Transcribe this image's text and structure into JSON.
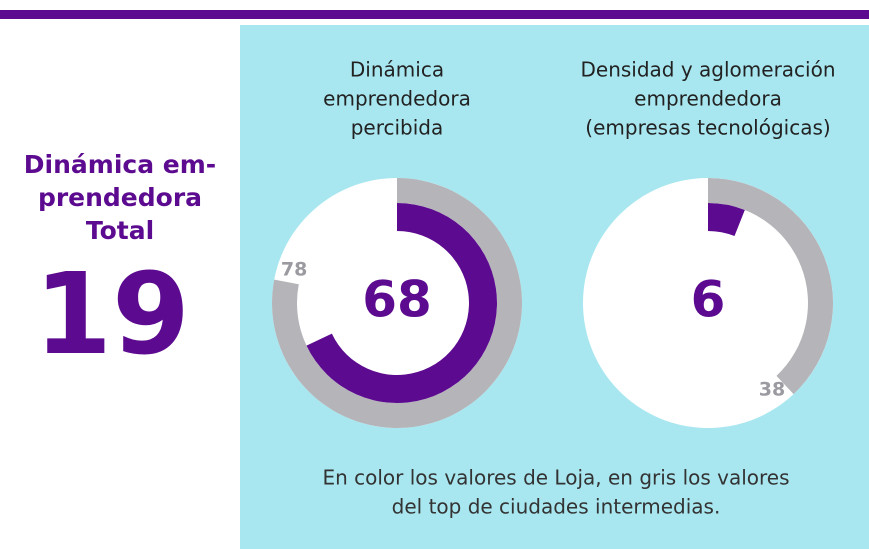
{
  "summary": {
    "title": [
      "Dinámica em-",
      "prendedora",
      "Total"
    ],
    "value": 19
  },
  "chart_data": [
    {
      "type": "radial",
      "title": [
        "Dinámica",
        "emprendedora",
        "percibida"
      ],
      "ylim": [
        0,
        100
      ],
      "series": [
        {
          "color": "#b4b4b9",
          "values": [
            78
          ]
        },
        {
          "color": "#5c0a8f",
          "values": [
            68
          ]
        }
      ]
    },
    {
      "type": "radial",
      "title": [
        "Densidad y aglomeración",
        "emprendedora",
        "(empresas tecnológicas)"
      ],
      "ylim": [
        0,
        100
      ],
      "series": [
        {
          "color": "#b4b4b9",
          "values": [
            38
          ]
        },
        {
          "color": "#5c0a8f",
          "values": [
            6
          ]
        }
      ]
    }
  ],
  "note": [
    "En color los valores de Loja, en gris los valores",
    "del top de ciudades intermedias."
  ]
}
